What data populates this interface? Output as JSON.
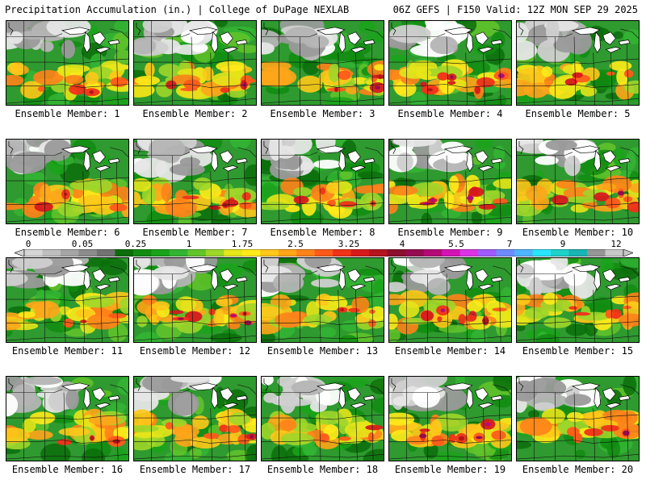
{
  "header": {
    "title": "Precipitation Accumulation (in.) | College of DuPage NEXLAB",
    "run_info": "06Z GEFS | F150 Valid: 12Z MON SEP 29 2025"
  },
  "colorbar": {
    "labels": [
      "0",
      "0.05",
      "0.25",
      "1",
      "1.75",
      "2.5",
      "3.25",
      "4",
      "5.5",
      "7",
      "9",
      "12"
    ],
    "colors": [
      "#d6d6d6",
      "#bebebe",
      "#a5a5a5",
      "#8c8c8c",
      "#737373",
      "#0b6e0b",
      "#118c11",
      "#1aa31a",
      "#33b533",
      "#63c42a",
      "#9ed62a",
      "#e6e61a",
      "#ffeb1a",
      "#ffc81a",
      "#ffa51a",
      "#ff821a",
      "#ff5a1a",
      "#f03219",
      "#d7191c",
      "#b4141e",
      "#8c0f2d",
      "#960a50",
      "#b40a78",
      "#d214b4",
      "#dc32e6",
      "#a05aff",
      "#6e8cff",
      "#50b4ff",
      "#28e6ff",
      "#1ed2c8",
      "#19b4b4",
      "#969696",
      "#c8c8c8"
    ]
  },
  "members": [
    {
      "label": "Ensemble Member: 1"
    },
    {
      "label": "Ensemble Member: 2"
    },
    {
      "label": "Ensemble Member: 3"
    },
    {
      "label": "Ensemble Member: 4"
    },
    {
      "label": "Ensemble Member: 5"
    },
    {
      "label": "Ensemble Member: 6"
    },
    {
      "label": "Ensemble Member: 7"
    },
    {
      "label": "Ensemble Member: 8"
    },
    {
      "label": "Ensemble Member: 9"
    },
    {
      "label": "Ensemble Member: 10"
    },
    {
      "label": "Ensemble Member: 11"
    },
    {
      "label": "Ensemble Member: 12"
    },
    {
      "label": "Ensemble Member: 13"
    },
    {
      "label": "Ensemble Member: 14"
    },
    {
      "label": "Ensemble Member: 15"
    },
    {
      "label": "Ensemble Member: 16"
    },
    {
      "label": "Ensemble Member: 17"
    },
    {
      "label": "Ensemble Member: 18"
    },
    {
      "label": "Ensemble Member: 19"
    },
    {
      "label": "Ensemble Member: 20"
    }
  ]
}
